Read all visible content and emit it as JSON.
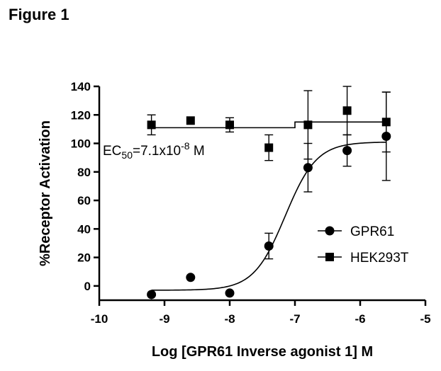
{
  "figure_label": "Figure 1",
  "chart_data": {
    "type": "scatter",
    "xlabel": "Log [GPR61 Inverse agonist 1] M",
    "ylabel": "%Receptor Activation",
    "xlim": [
      -10,
      -5
    ],
    "ylim": [
      -10,
      140
    ],
    "x_ticks": [
      -10,
      -9,
      -8,
      -7,
      -6,
      -5
    ],
    "y_ticks": [
      0,
      20,
      40,
      60,
      80,
      100,
      120,
      140
    ],
    "grid": false,
    "legend_position": "right",
    "annotation": {
      "base": "EC",
      "sub": "50",
      "mid": "=7.1x10",
      "sup": "-8",
      "tail": " M"
    },
    "series": [
      {
        "name": "GPR61",
        "marker": "circle",
        "x": [
          -9.2,
          -8.6,
          -8.0,
          -7.4,
          -6.8,
          -6.2,
          -5.6
        ],
        "y": [
          -6,
          6,
          -5,
          28,
          83,
          95,
          105
        ],
        "err": [
          0,
          0,
          0,
          9,
          17,
          11,
          31
        ],
        "fit": {
          "bottom": -3,
          "top": 101,
          "logec50": -7.15,
          "hill": 1.8
        }
      },
      {
        "name": "HEK293T",
        "marker": "square",
        "x": [
          -9.2,
          -8.6,
          -8.0,
          -7.4,
          -6.8,
          -6.2,
          -5.6
        ],
        "y": [
          113,
          116,
          113,
          97,
          113,
          123,
          115
        ],
        "err": [
          7,
          0,
          5,
          9,
          24,
          17,
          21
        ],
        "fit_segments": [
          {
            "x_from": -9.2,
            "x_to": -7.0,
            "y": 111
          },
          {
            "x_from": -7.0,
            "x_to": -5.6,
            "y": 115
          }
        ]
      }
    ]
  }
}
